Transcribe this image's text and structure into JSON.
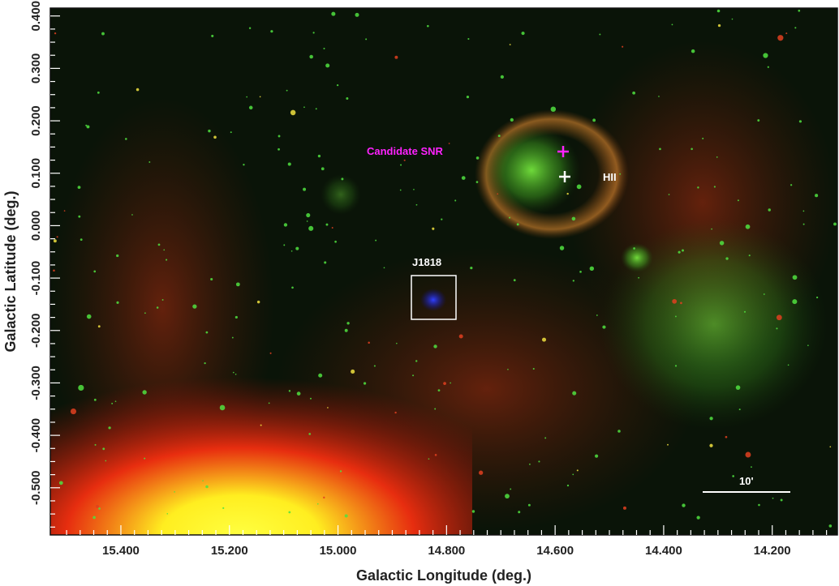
{
  "figure": {
    "xlabel": "Galactic Longitude (deg.)",
    "ylabel": "Galactic Latitude (deg.)",
    "x_ticks": [
      "15.400",
      "15.200",
      "15.000",
      "14.800",
      "14.600",
      "14.400",
      "14.200"
    ],
    "y_ticks": [
      "0.400",
      "0.300",
      "0.200",
      "0.100",
      "0.000",
      "-0.100",
      "-0.200",
      "-0.300",
      "-0.400",
      "-0.500"
    ],
    "xlim": [
      15.53,
      14.08
    ],
    "ylim": [
      -0.59,
      0.415
    ]
  },
  "annotations": {
    "candidate_snr": "Candidate SNR",
    "hii": "HII",
    "source": "J1818",
    "scale_bar": "10'"
  },
  "colors": {
    "candidate_snr": "#ff22ff",
    "hii": "#ffffff",
    "source_box": "#ffffff",
    "background": "#0a1408"
  }
}
